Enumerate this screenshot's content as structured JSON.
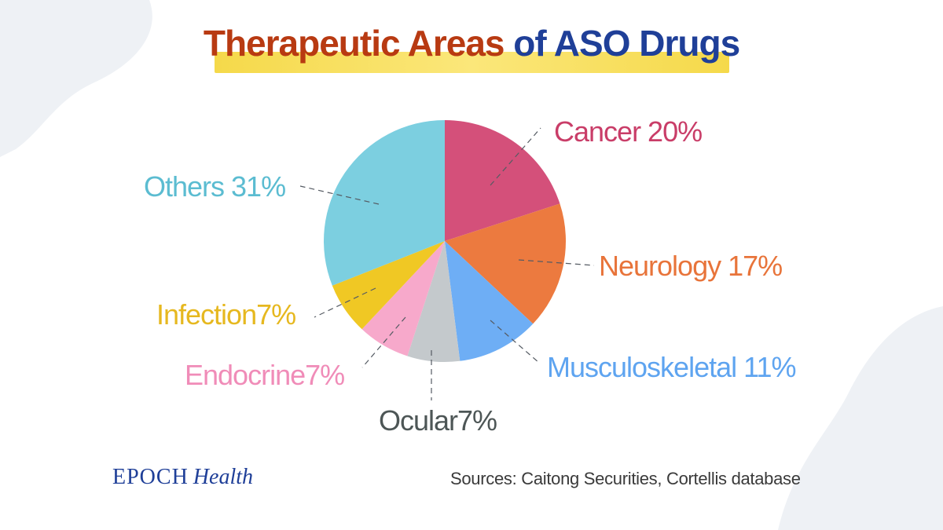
{
  "title": {
    "part1": "Therapeutic Areas ",
    "part2": "of ASO Drugs"
  },
  "colors": {
    "title_part1": "#b83a12",
    "title_part2": "#1f3f98",
    "title_highlight": "#f5d94a",
    "brand": "#1f3f98",
    "source_text": "#3a3a3a",
    "background_shape": "#eef1f5"
  },
  "chart_data": {
    "type": "pie",
    "start_angle": "12 o'clock, clockwise",
    "slices": [
      {
        "label": "Cancer 20%",
        "category": "Cancer",
        "value": 20,
        "color": "#d4507a",
        "label_color": "#c93d68"
      },
      {
        "label": "Neurology 17%",
        "category": "Neurology",
        "value": 17,
        "color": "#ec7a3f",
        "label_color": "#e8743a"
      },
      {
        "label": "Musculoskeletal 11%",
        "category": "Musculoskeletal",
        "value": 11,
        "color": "#6eaef5",
        "label_color": "#5ea4f0"
      },
      {
        "label": "Ocular7%",
        "category": "Ocular",
        "value": 7,
        "color": "#c4c9cc",
        "label_color": "#4d5656"
      },
      {
        "label": "Endocrine7%",
        "category": "Endocrine",
        "value": 7,
        "color": "#f7a9cb",
        "label_color": "#f08cb8"
      },
      {
        "label": "Infection7%",
        "category": "Infection",
        "value": 7,
        "color": "#f0c824",
        "label_color": "#e6b81f"
      },
      {
        "label": "Others 31%",
        "category": "Others",
        "value": 31,
        "color": "#7ccfe0",
        "label_color": "#5bbcd1"
      }
    ]
  },
  "footer": {
    "brand_epoch": "EPOCH",
    "brand_health": "Health",
    "sources": "Sources: Caitong Securities, Cortellis database"
  }
}
